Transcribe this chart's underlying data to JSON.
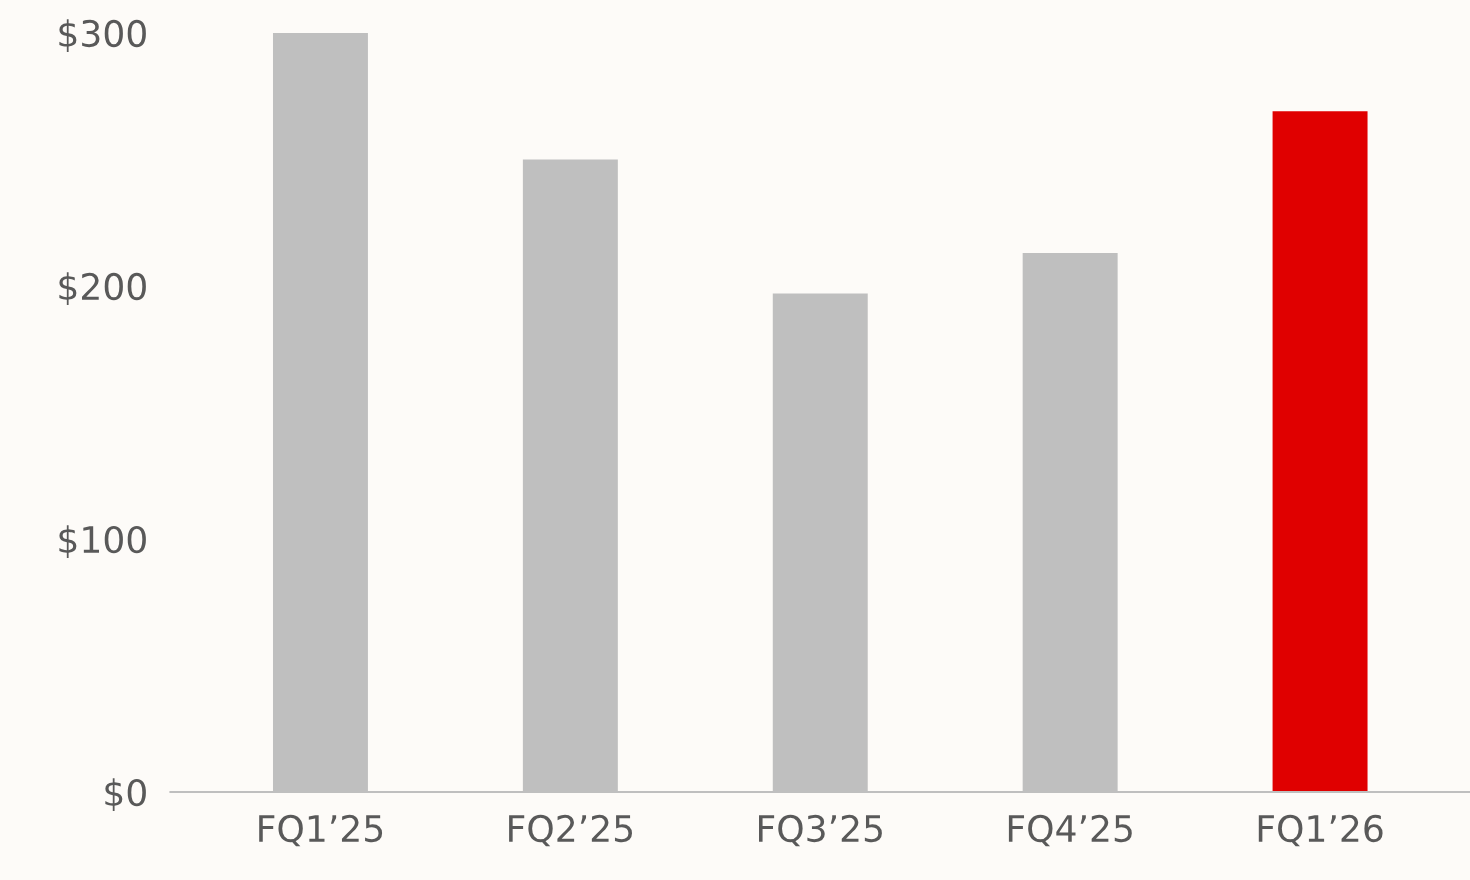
{
  "chart_data": {
    "type": "bar",
    "categories": [
      "FQ1’25",
      "FQ2’25",
      "FQ3’25",
      "FQ4’25",
      "FQ1’26"
    ],
    "values": [
      300,
      250,
      197,
      213,
      269
    ],
    "colors": [
      "#bfbfbf",
      "#bfbfbf",
      "#bfbfbf",
      "#bfbfbf",
      "#e00000"
    ],
    "ylim": [
      0,
      313
    ],
    "yticks": [
      {
        "value": 0,
        "label": "$0"
      },
      {
        "value": 100,
        "label": "$100"
      },
      {
        "value": 200,
        "label": "$200"
      },
      {
        "value": 300,
        "label": "$300"
      }
    ],
    "grid": false
  }
}
